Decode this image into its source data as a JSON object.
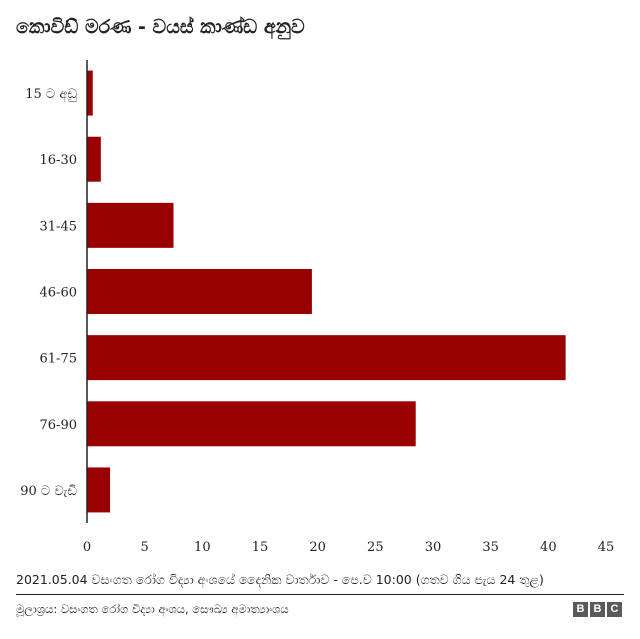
{
  "chart_data": {
    "type": "bar",
    "orientation": "horizontal",
    "title": "කොවිඩ් මරණ - වයස් කාණ්ඩ අනුව",
    "categories": [
      "15 ට අඩු",
      "16-30",
      "31-45",
      "46-60",
      "61-75",
      "76-90",
      "90 ට වැඩි"
    ],
    "values": [
      0.5,
      1.2,
      7.5,
      19.5,
      41.5,
      28.5,
      2.0
    ],
    "xlim": [
      0,
      45
    ],
    "xticks": [
      0,
      5,
      10,
      15,
      20,
      25,
      30,
      35,
      40,
      45
    ],
    "grid": false,
    "bar_color": "#990000"
  },
  "footer": {
    "note": "2021.05.04 වසංගත රෝග විද්‍යා අංශයේ දෛනික වාර්තාව - පෙ.ව 10:00 (ගතව ගිය පැය 24 තුළ)",
    "source": "මූලාශ්‍රය: වසංගත රෝග විද්‍යා අංශය, සෞඛ්‍ය අමාත්‍යාංශය",
    "logo_letters": [
      "B",
      "B",
      "C"
    ]
  }
}
